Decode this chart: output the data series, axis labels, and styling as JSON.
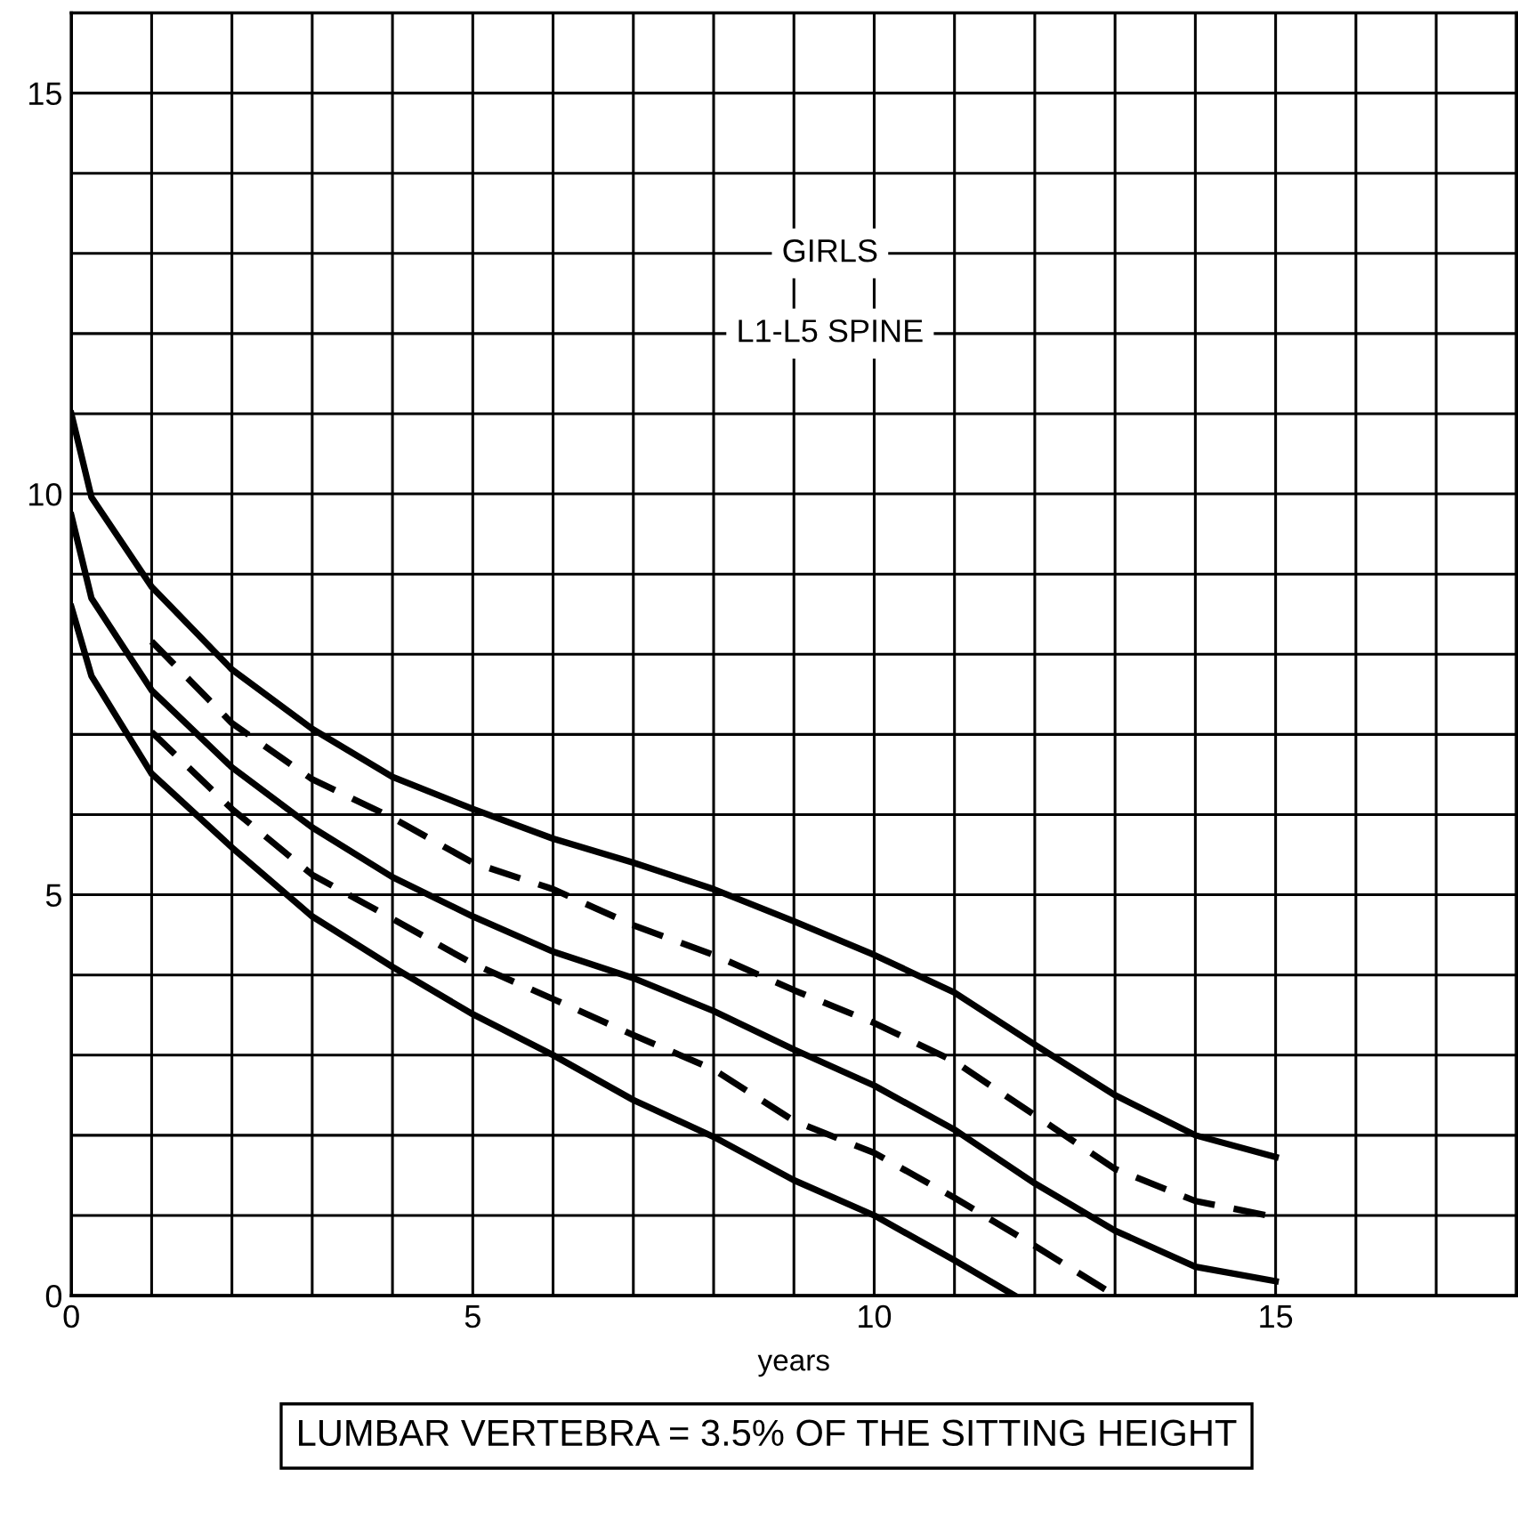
{
  "chart_data": {
    "type": "line",
    "xlabel": "years",
    "annotations": [
      "GIRLS",
      "L1-L5 SPINE",
      "LUMBAR VERTEBRA = 3.5% OF THE SITTING HEIGHT"
    ],
    "xlim": [
      0,
      18
    ],
    "ylim": [
      0,
      16
    ],
    "xticks": [
      0,
      {
        "value": 1,
        "label": null
      },
      {
        "value": 2,
        "label": null
      },
      {
        "value": 3,
        "label": null
      },
      {
        "value": 4,
        "label": null
      },
      5,
      {
        "value": 6,
        "label": null
      },
      {
        "value": 7,
        "label": null
      },
      {
        "value": 8,
        "label": null
      },
      {
        "value": 9,
        "label": null
      },
      10,
      {
        "value": 11,
        "label": null
      },
      {
        "value": 12,
        "label": null
      },
      {
        "value": 13,
        "label": null
      },
      {
        "value": 14,
        "label": null
      },
      15,
      {
        "value": 16,
        "label": null
      },
      {
        "value": 17,
        "label": null
      },
      {
        "value": 18,
        "label": null
      }
    ],
    "yticks": [
      0,
      {
        "value": 1,
        "label": null
      },
      {
        "value": 2,
        "label": null
      },
      {
        "value": 3,
        "label": null
      },
      {
        "value": 4,
        "label": null
      },
      5,
      {
        "value": 6,
        "label": null
      },
      {
        "value": 7,
        "label": null
      },
      {
        "value": 8,
        "label": null
      },
      {
        "value": 9,
        "label": null
      },
      10,
      {
        "value": 11,
        "label": null
      },
      {
        "value": 12,
        "label": null
      },
      {
        "value": 13,
        "label": null
      },
      {
        "value": 14,
        "label": null
      },
      15,
      {
        "value": 16,
        "label": null
      }
    ],
    "grid": true,
    "marker": "none",
    "series": [
      {
        "color": "#000000",
        "line_style": "solid",
        "x": [
          0,
          0.25,
          1,
          2,
          3,
          4,
          5,
          6,
          7,
          8,
          9,
          10,
          11,
          12,
          13,
          14,
          15
        ],
        "values": [
          11.0,
          9.96,
          8.84,
          7.81,
          7.07,
          6.47,
          6.07,
          5.7,
          5.4,
          5.07,
          4.67,
          4.25,
          3.78,
          3.13,
          2.5,
          2.0,
          1.73
        ]
      },
      {
        "color": "#000000",
        "line_style": "dashed",
        "x": [
          1,
          2,
          3,
          4,
          5,
          6,
          7,
          8,
          9,
          10,
          11,
          12,
          13,
          14,
          15
        ],
        "values": [
          8.16,
          7.14,
          6.44,
          5.96,
          5.4,
          5.07,
          4.62,
          4.25,
          3.81,
          3.4,
          2.92,
          2.25,
          1.58,
          1.18,
          0.98
        ]
      },
      {
        "color": "#000000",
        "line_style": "solid",
        "x": [
          0,
          0.25,
          1,
          2,
          3,
          4,
          5,
          6,
          7,
          8,
          9,
          10,
          11,
          12,
          13,
          14,
          15
        ],
        "values": [
          9.73,
          8.7,
          7.55,
          6.59,
          5.84,
          5.22,
          4.73,
          4.29,
          3.96,
          3.55,
          3.07,
          2.62,
          2.07,
          1.4,
          0.81,
          0.36,
          0.18
        ]
      },
      {
        "color": "#000000",
        "line_style": "dashed",
        "x": [
          1,
          2,
          3,
          4,
          5,
          6,
          7,
          8,
          9,
          10,
          11,
          12,
          13
        ],
        "values": [
          7.03,
          6.07,
          5.25,
          4.7,
          4.14,
          3.7,
          3.25,
          2.82,
          2.18,
          1.78,
          1.22,
          0.62,
          0.0
        ]
      },
      {
        "color": "#000000",
        "line_style": "solid",
        "x": [
          0,
          0.25,
          1,
          2,
          3,
          4,
          5,
          6,
          7,
          8,
          9,
          10,
          11,
          11.75
        ],
        "values": [
          8.59,
          7.73,
          6.51,
          5.59,
          4.73,
          4.1,
          3.51,
          3.0,
          2.44,
          1.98,
          1.44,
          1.0,
          0.44,
          0.0
        ]
      }
    ]
  }
}
